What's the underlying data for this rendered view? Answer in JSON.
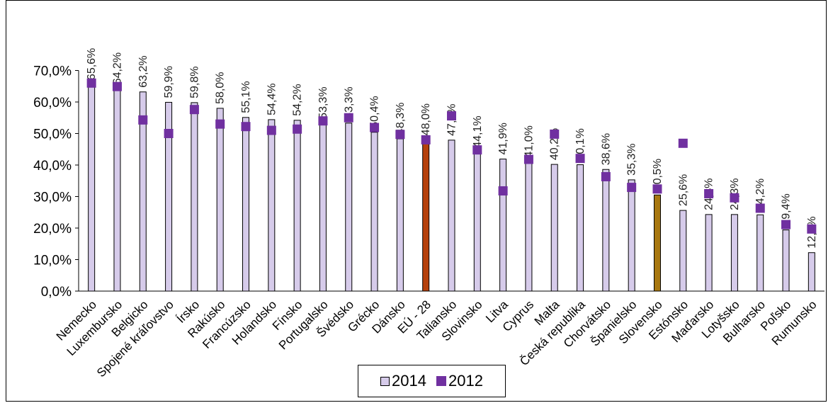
{
  "colors": {
    "bar_2014": "#d6cbea",
    "bar_eu": "#b5400b",
    "bar_slovakia": "#a87810",
    "marker_2012": "#7030a0",
    "axis": "#000000"
  },
  "legend": {
    "series_2014": "2014",
    "series_2012": "2012"
  },
  "chart_data": {
    "type": "bar",
    "title": "",
    "xlabel": "",
    "ylabel": "",
    "ylim": [
      0,
      70
    ],
    "y_tick_labels": [
      "0,0%",
      "10,0%",
      "20,0%",
      "30,0%",
      "40,0%",
      "50,0%",
      "60,0%",
      "70,0%"
    ],
    "legend_position": "bottom",
    "categories": [
      "Nemecko",
      "Luxembursko",
      "Belgicko",
      "Spojené kráľovstvo",
      "Írsko",
      "Rakúsko",
      "Francúzsko",
      "Holandsko",
      "Fínsko",
      "Portugalsko",
      "Švédsko",
      "Grécko",
      "Dánsko",
      "EÚ - 28",
      "Taliansko",
      "Slovinsko",
      "Litva",
      "Cyprus",
      "Malta",
      "Česká republika",
      "Chorvátsko",
      "Španielsko",
      "Slovensko",
      "Estónsko",
      "Maďarsko",
      "Lotyšsko",
      "Bulharsko",
      "Poľsko",
      "Rumunsko"
    ],
    "series": [
      {
        "name": "2014",
        "type": "bar",
        "values": [
          65.6,
          64.2,
          63.2,
          59.9,
          59.8,
          58.0,
          55.1,
          54.4,
          54.2,
          53.3,
          53.3,
          50.4,
          48.3,
          48.0,
          47.9,
          44.1,
          41.9,
          41.0,
          40.2,
          40.1,
          38.6,
          35.3,
          30.5,
          25.6,
          24.3,
          24.3,
          24.2,
          19.4,
          12.2
        ],
        "labels": [
          "65,6%",
          "64,2%",
          "63,2%",
          "59,9%",
          "59,8%",
          "58,0%",
          "55,1%",
          "54,4%",
          "54,2%",
          "53,3%",
          "53,3%",
          "50,4%",
          "48,3%",
          "48,0%",
          "47,9%",
          "44,1%",
          "41,9%",
          "41,0%",
          "40,2%",
          "40,1%",
          "38,6%",
          "35,3%",
          "30,5%",
          "25,6%",
          "24,3%",
          "24,3%",
          "24,2%",
          "19,4%",
          "12,2%"
        ],
        "highlight": {
          "EÚ - 28": "#b5400b",
          "Slovensko": "#a87810"
        }
      },
      {
        "name": "2012",
        "type": "marker",
        "values": [
          66.0,
          64.9,
          54.3,
          50.0,
          57.6,
          53.0,
          52.2,
          51.0,
          51.4,
          54.0,
          55.0,
          51.9,
          49.7,
          48.0,
          55.6,
          44.8,
          31.8,
          41.8,
          49.8,
          42.1,
          36.3,
          32.9,
          32.4,
          46.9,
          30.9,
          29.6,
          26.3,
          21.1,
          19.7
        ]
      }
    ]
  }
}
